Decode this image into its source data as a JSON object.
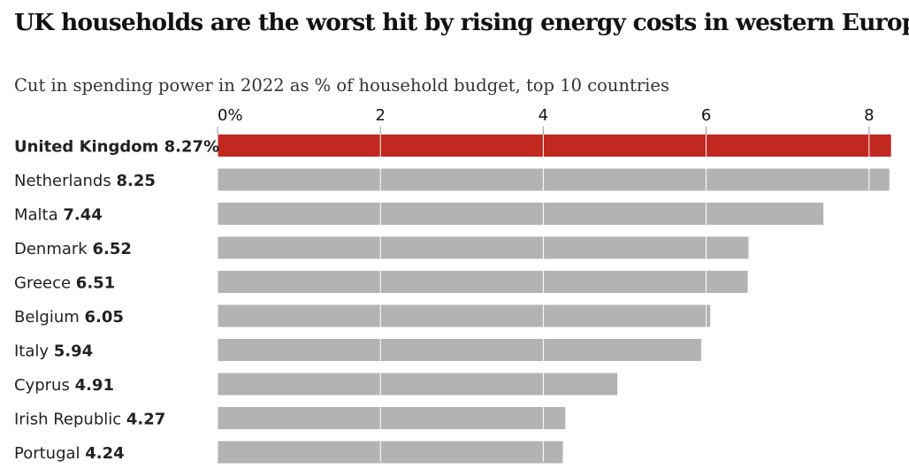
{
  "title": "UK households are the worst hit by rising energy costs in western Europe",
  "subtitle": "Cut in spending power in 2022 as % of household budget, top 10 countries",
  "colors": {
    "highlight": "#c1281f",
    "bar": "#b3b3b3",
    "gridline": "#ffffff",
    "axis_tick": "#999999"
  },
  "chart_data": {
    "type": "bar",
    "orientation": "horizontal",
    "categories": [
      "United Kingdom",
      "Netherlands",
      "Malta",
      "Denmark",
      "Greece",
      "Belgium",
      "Italy",
      "Cyprus",
      "Irish Republic",
      "Portugal"
    ],
    "values": [
      8.27,
      8.25,
      7.44,
      6.52,
      6.51,
      6.05,
      5.94,
      4.91,
      4.27,
      4.24
    ],
    "value_labels": [
      "8.27%",
      "8.25",
      "7.44",
      "6.52",
      "6.51",
      "6.05",
      "5.94",
      "4.91",
      "4.27",
      "4.24"
    ],
    "highlight_index": 0,
    "xlim": [
      0,
      8.27
    ],
    "x_ticks": [
      0,
      2,
      4,
      6,
      8
    ],
    "x_tick_labels": [
      "0%",
      "2",
      "4",
      "6",
      "8"
    ],
    "grid": true,
    "legend": "none"
  }
}
